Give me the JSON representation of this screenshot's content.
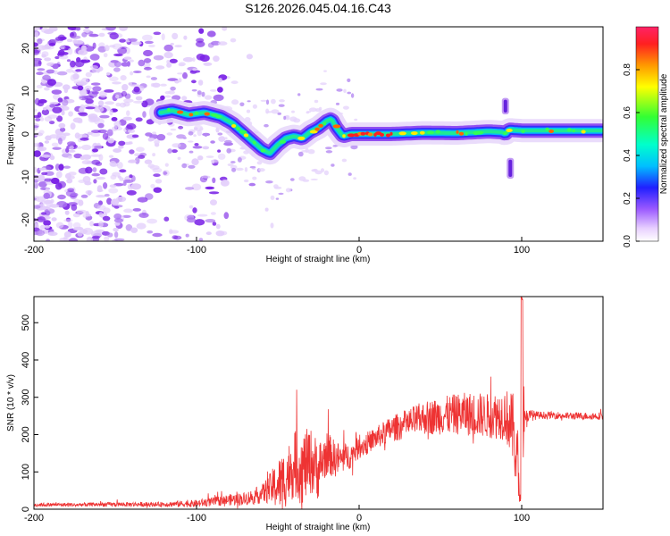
{
  "title": "S126.2026.045.04.16.C43",
  "chart_data": [
    {
      "type": "heatmap",
      "xlabel": "Height of straight line (km)",
      "ylabel": "Frequency (Hz)",
      "xlim": [
        -200,
        150
      ],
      "ylim": [
        -25,
        25
      ],
      "xticks": [
        -200,
        -100,
        0,
        100
      ],
      "yticks": [
        -20,
        -10,
        0,
        10,
        20
      ],
      "colorbar": {
        "label": "Normalized spectral amplitude",
        "range": [
          0,
          1
        ],
        "ticks": [
          "0.0",
          "0.2",
          "0.4",
          "0.6",
          "0.8"
        ]
      },
      "ridge": {
        "name": "dominant frequency track",
        "x": [
          -122,
          -115,
          -105,
          -95,
          -85,
          -78,
          -72,
          -66,
          -60,
          -55,
          -50,
          -45,
          -40,
          -35,
          -30,
          -25,
          -20,
          -17,
          -14,
          -10,
          -5,
          0,
          10,
          20,
          40,
          60,
          80,
          88,
          90,
          92,
          100,
          120,
          150
        ],
        "y": [
          5,
          5.5,
          4.5,
          5,
          4,
          2.5,
          0.5,
          -1.5,
          -3.5,
          -4.5,
          -2.5,
          -1,
          -0.5,
          -1,
          0.5,
          1.5,
          3,
          3.5,
          1.5,
          -0.5,
          0,
          0,
          0,
          0,
          0.3,
          0.2,
          0.6,
          0.4,
          0,
          1,
          0.8,
          0.8,
          0.8
        ]
      },
      "transients": [
        {
          "x": 90,
          "y_range": [
            5,
            8
          ]
        },
        {
          "x": 93,
          "y_range": [
            -10,
            -6
          ]
        }
      ]
    },
    {
      "type": "line",
      "xlabel": "Height of straight line (km)",
      "ylabel": "SNR (10 * v/v)",
      "xlim": [
        -200,
        150
      ],
      "ylim": [
        0,
        570
      ],
      "xticks": [
        -200,
        -100,
        0,
        100
      ],
      "yticks": [
        0,
        100,
        200,
        300,
        400,
        500
      ],
      "color": "#ee3333",
      "series": [
        {
          "name": "SNR",
          "x": [
            -200,
            -175,
            -150,
            -125,
            -100,
            -90,
            -80,
            -70,
            -60,
            -55,
            -50,
            -45,
            -40,
            -35,
            -30,
            -25,
            -20,
            -15,
            -10,
            -5,
            0,
            10,
            20,
            30,
            40,
            50,
            60,
            70,
            80,
            90,
            95,
            98,
            100,
            102,
            110,
            120,
            130,
            140,
            150
          ],
          "y": [
            12,
            12,
            13,
            13,
            15,
            20,
            25,
            28,
            40,
            55,
            65,
            85,
            120,
            110,
            130,
            105,
            150,
            135,
            135,
            145,
            165,
            190,
            215,
            230,
            245,
            250,
            255,
            255,
            250,
            255,
            210,
            90,
            300,
            250,
            252,
            252,
            250,
            250,
            250
          ],
          "noise_amplitude": [
            5,
            5,
            6,
            6,
            10,
            12,
            15,
            18,
            25,
            40,
            70,
            80,
            90,
            100,
            90,
            80,
            60,
            50,
            40,
            35,
            30,
            30,
            35,
            40,
            45,
            50,
            55,
            60,
            60,
            70,
            100,
            120,
            280,
            20,
            10,
            10,
            10,
            10,
            10
          ]
        }
      ]
    }
  ]
}
